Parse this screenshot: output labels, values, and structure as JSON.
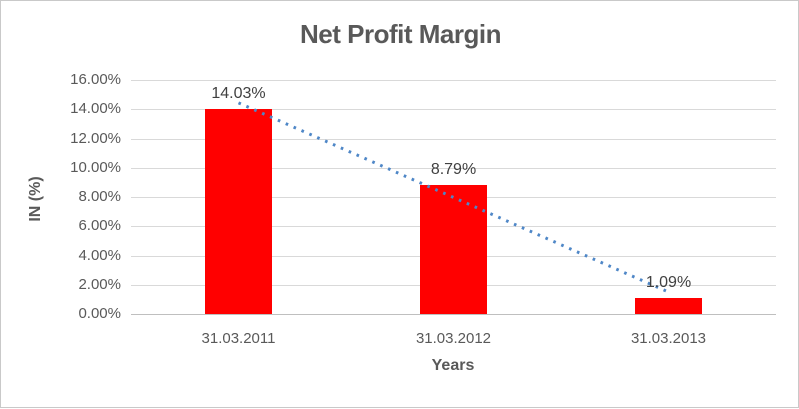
{
  "chart_data": {
    "type": "bar",
    "title": "Net Profit Margin",
    "xlabel": "Years",
    "ylabel": "IN (%)",
    "categories": [
      "31.03.2011",
      "31.03.2012",
      "31.03.2013"
    ],
    "values": [
      14.03,
      8.79,
      1.09
    ],
    "data_labels": [
      "14.03%",
      "8.79%",
      "1.09%"
    ],
    "ylim": [
      0,
      16
    ],
    "y_ticks": [
      {
        "value": 0,
        "label": "0.00%"
      },
      {
        "value": 2,
        "label": "2.00%"
      },
      {
        "value": 4,
        "label": "4.00%"
      },
      {
        "value": 6,
        "label": "6.00%"
      },
      {
        "value": 8,
        "label": "8.00%"
      },
      {
        "value": 10,
        "label": "10.00%"
      },
      {
        "value": 12,
        "label": "12.00%"
      },
      {
        "value": 14,
        "label": "14.00%"
      },
      {
        "value": 16,
        "label": "16.00%"
      }
    ],
    "grid": true,
    "legend": "none",
    "bar_color": "#FF0000",
    "trendline": {
      "type": "linear",
      "style": "dotted",
      "color": "#4F87C7",
      "fit_endpoints": [
        14.44,
        1.5
      ]
    },
    "colors": {
      "title": "#595959",
      "tick_labels": "#595959",
      "data_labels": "#404040",
      "gridline": "#D9D9D9",
      "axis_line": "#BFBFBF",
      "background": "#FFFFFF",
      "border": "#C9C9C9"
    }
  }
}
